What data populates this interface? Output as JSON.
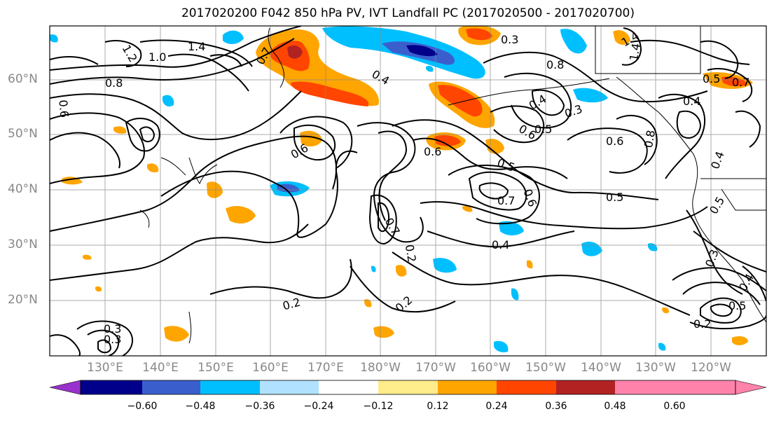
{
  "title": "2017020200 F042 850 hPa PV, IVT Landfall PC (2017020500 - 2017020700)",
  "lat_labels": [
    "60°N",
    "50°N",
    "40°N",
    "30°N",
    "20°N"
  ],
  "lon_labels": [
    "130°E",
    "140°E",
    "150°E",
    "160°E",
    "170°E",
    "180°W",
    "170°W",
    "160°W",
    "150°W",
    "140°W",
    "130°W",
    "120°W"
  ],
  "colorbar": {
    "ticks": [
      "−0.60",
      "−0.48",
      "−0.36",
      "−0.24",
      "−0.12",
      "0.12",
      "0.24",
      "0.36",
      "0.48",
      "0.60"
    ],
    "colors": [
      "#9932cc",
      "#00008b",
      "#3a5fcd",
      "#00bfff",
      "#b0e2ff",
      "#ffffff",
      "#ffec8b",
      "#ffa500",
      "#ff4500",
      "#b22222",
      "#ff82ab",
      "#ff82ab"
    ]
  },
  "contour_labels": [
    "1.4",
    "1.0",
    "1.2",
    "0.8",
    "0.6",
    "0.7",
    "0.4",
    "0.3",
    "1.4",
    "0.8",
    "0.5",
    "0.4",
    "0.5",
    "0.6",
    "0.6",
    "0.5",
    "0.3",
    "0.4",
    "0.6",
    "0.8",
    "0.6",
    "0.4",
    "0.7",
    "0.7",
    "0.5",
    "0.6",
    "0.5",
    "0.4",
    "0.3",
    "0.2",
    "0.2",
    "0.2",
    "0.2",
    "0.3",
    "0.3",
    "0.4",
    "0.5",
    "1.4",
    "0.7"
  ]
}
